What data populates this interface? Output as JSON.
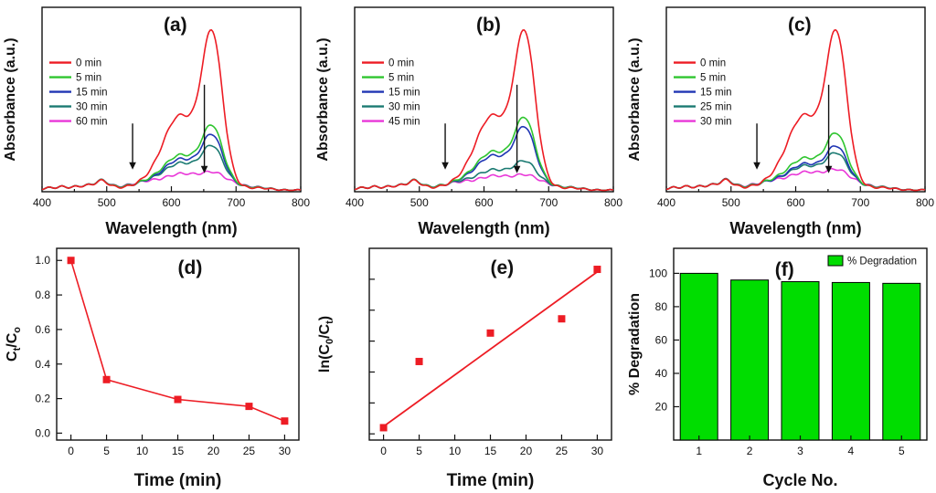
{
  "figure": {
    "background": "#ffffff",
    "text_color": "#111111"
  },
  "chart_data": [
    {
      "id": "a",
      "type": "spectra",
      "panel_label": "(a)",
      "xlabel": "Wavelength (nm)",
      "ylabel": "Absorbance (a.u.)",
      "xlim": [
        400,
        800
      ],
      "xtick_major_step": 100,
      "xtick_minor_step": 50,
      "legend_position": "left-middle",
      "series": [
        {
          "label": "0 min",
          "color": "#ed1c24",
          "amp": 1.0,
          "broad": 0.03
        },
        {
          "label": "5 min",
          "color": "#2fc52f",
          "amp": 0.37,
          "broad": 0.05
        },
        {
          "label": "15 min",
          "color": "#2036b4",
          "amp": 0.31,
          "broad": 0.05
        },
        {
          "label": "30 min",
          "color": "#1b7a72",
          "amp": 0.23,
          "broad": 0.06
        },
        {
          "label": "60 min",
          "color": "#e937d8",
          "amp": 0.05,
          "broad": 0.07
        }
      ]
    },
    {
      "id": "b",
      "type": "spectra",
      "panel_label": "(b)",
      "xlabel": "Wavelength (nm)",
      "ylabel": "Absorbance  (a.u.)",
      "xlim": [
        400,
        800
      ],
      "xtick_major_step": 100,
      "xtick_minor_step": 50,
      "legend_position": "left-middle",
      "series": [
        {
          "label": "0 min",
          "color": "#ed1c24",
          "amp": 1.0,
          "broad": 0.03
        },
        {
          "label": "5 min",
          "color": "#2fc52f",
          "amp": 0.42,
          "broad": 0.05
        },
        {
          "label": "15 min",
          "color": "#2036b4",
          "amp": 0.36,
          "broad": 0.05
        },
        {
          "label": "30 min",
          "color": "#1b7a72",
          "amp": 0.13,
          "broad": 0.06
        },
        {
          "label": "45 min",
          "color": "#e937d8",
          "amp": 0.04,
          "broad": 0.06
        }
      ]
    },
    {
      "id": "c",
      "type": "spectra",
      "panel_label": "(c)",
      "xlabel": "Wavelength (nm)",
      "ylabel": "Absorbance (a.u.)",
      "xlim": [
        400,
        800
      ],
      "xtick_major_step": 100,
      "xtick_minor_step": 50,
      "legend_position": "left-middle",
      "series": [
        {
          "label": "0 min",
          "color": "#ed1c24",
          "amp": 0.95,
          "broad": 0.03
        },
        {
          "label": "5 min",
          "color": "#2fc52f",
          "amp": 0.3,
          "broad": 0.05
        },
        {
          "label": "15 min",
          "color": "#2036b4",
          "amp": 0.22,
          "broad": 0.05
        },
        {
          "label": "25 min",
          "color": "#1b7a72",
          "amp": 0.17,
          "broad": 0.06
        },
        {
          "label": "30 min",
          "color": "#e937d8",
          "amp": 0.06,
          "broad": 0.07
        }
      ]
    },
    {
      "id": "d",
      "type": "scatter",
      "panel_label": "(d)",
      "xlabel": "Time (min)",
      "ylabel_rich": [
        {
          "t": "C",
          "sub": false
        },
        {
          "t": "t",
          "sub": true
        },
        {
          "t": "/C",
          "sub": false
        },
        {
          "t": "o",
          "sub": true
        }
      ],
      "x": [
        0,
        5,
        15,
        25,
        30
      ],
      "y": [
        1.0,
        0.31,
        0.195,
        0.155,
        0.07
      ],
      "connect": true,
      "xticks": [
        0,
        5,
        10,
        15,
        20,
        25,
        30
      ],
      "xlim": [
        -2,
        32
      ],
      "ylim": [
        -0.04,
        1.07
      ],
      "ytick_vals": [
        0.0,
        0.2,
        0.4,
        0.6,
        0.8,
        1.0
      ],
      "ytick_labels": [
        "0.0",
        "0.2",
        "0.4",
        "0.6",
        "0.8",
        "1.0"
      ],
      "color": "#ed1c24",
      "marker": "square"
    },
    {
      "id": "e",
      "type": "scatter",
      "panel_label": "(e)",
      "xlabel": "Time (min)",
      "ylabel_rich": [
        {
          "t": "ln(C",
          "sub": false
        },
        {
          "t": "0",
          "sub": true
        },
        {
          "t": "/C",
          "sub": false
        },
        {
          "t": "t",
          "sub": true
        },
        {
          "t": ")",
          "sub": false
        }
      ],
      "x": [
        0,
        5,
        15,
        25,
        30
      ],
      "y": [
        0.1,
        1.17,
        1.63,
        1.86,
        2.66
      ],
      "fit": {
        "x": [
          0,
          30
        ],
        "y": [
          0.12,
          2.62
        ]
      },
      "connect": false,
      "xticks": [
        0,
        5,
        10,
        15,
        20,
        25,
        30
      ],
      "xlim": [
        -2,
        32
      ],
      "ylim": [
        -0.1,
        3.0
      ],
      "ytick_vals": [
        0,
        0.5,
        1.0,
        1.5,
        2.0,
        2.5
      ],
      "ytick_labels": null,
      "color": "#ed1c24",
      "marker": "square"
    },
    {
      "id": "f",
      "type": "bar",
      "panel_label": "(f)",
      "xlabel": "Cycle No.",
      "ylabel": "% Degradation",
      "categories": [
        "1",
        "2",
        "3",
        "4",
        "5"
      ],
      "values": [
        100,
        96,
        95,
        94.5,
        94
      ],
      "ylim": [
        0,
        115
      ],
      "ytick_vals": [
        20,
        40,
        60,
        80,
        100
      ],
      "ytick_labels": [
        "20",
        "40",
        "60",
        "80",
        "100"
      ],
      "bar_color": "#00dd00",
      "legend_label": "% Degradation",
      "legend_position": "top-right"
    }
  ]
}
